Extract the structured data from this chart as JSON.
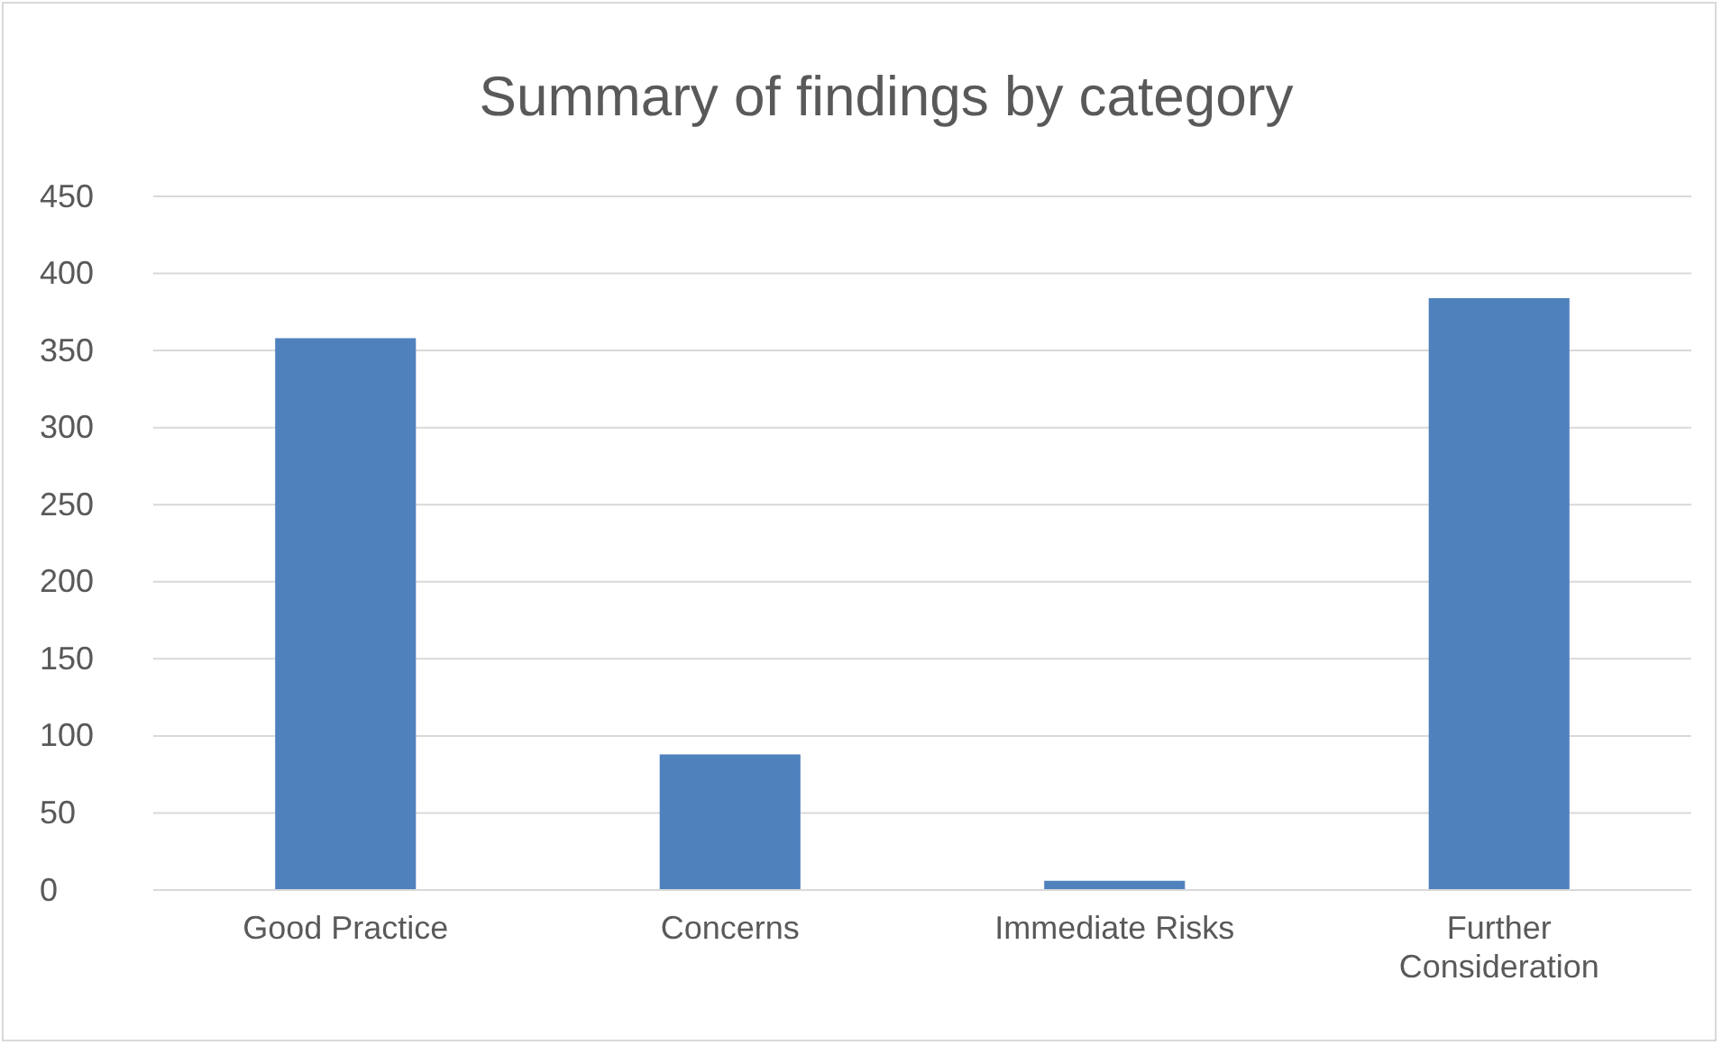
{
  "chart_data": {
    "type": "bar",
    "title": "Summary of findings by category",
    "categories": [
      "Good Practice",
      "Concerns",
      "Immediate Risks",
      "Further Consideration"
    ],
    "values": [
      358,
      88,
      6,
      384
    ],
    "color": "#4f81bd",
    "ylim": [
      0,
      450
    ],
    "yticks": [
      0,
      50,
      100,
      150,
      200,
      250,
      300,
      350,
      400,
      450
    ],
    "grid": "y"
  }
}
